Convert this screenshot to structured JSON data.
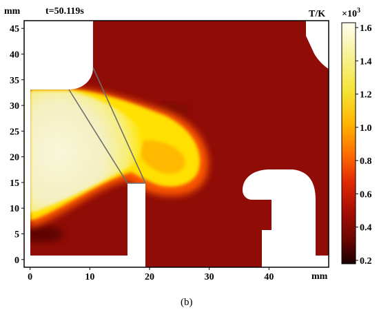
{
  "figure": {
    "y_unit": "mm",
    "x_unit": "mm",
    "time_label": "t=50.119s",
    "caption": "(b)",
    "x_ticks": [
      "0",
      "10",
      "20",
      "30",
      "40"
    ],
    "y_ticks": [
      "0",
      "5",
      "10",
      "15",
      "20",
      "25",
      "30",
      "35",
      "40",
      "45"
    ],
    "xlim": [
      -1,
      50
    ],
    "ylim": [
      -1.5,
      46.5
    ]
  },
  "colorbar": {
    "title": "T/K",
    "multiplier_base": "×10",
    "multiplier_exp": "3",
    "ticks": [
      "1.6",
      "1.4",
      "1.2",
      "1.0",
      "0.8",
      "0.6",
      "0.4",
      "0.2"
    ],
    "colors": {
      "top": "#FFFFF0",
      "upper": "#F7EF6A",
      "mid": "#FFC000",
      "orange": "#FF7800",
      "red": "#D81E05",
      "dark": "#8B0A05",
      "bottom": "#1A0000"
    }
  },
  "colors": {
    "background_field": "#900C06",
    "hot_core": "#F6F3C8",
    "flame_yellow": "#FFE800",
    "flame_orange": "#FF8A00",
    "solid": "#FFFFFF"
  }
}
